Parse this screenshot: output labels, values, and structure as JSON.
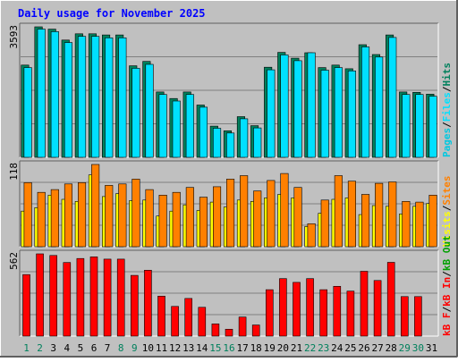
{
  "title": "Daily usage for November 2025",
  "colors": {
    "background": "#C0C0C0",
    "title": "#0000FF",
    "hits": "#00805C",
    "files": "#00E0FF",
    "pages": "#00C8E0",
    "visits": "#FFFF00",
    "sites": "#FF8000",
    "kbin": "#FF0000",
    "kbout": "#00A000",
    "kbf": "#FF0000",
    "day_weekday": "#000000",
    "day_weekend": "#00805C"
  },
  "chart_data": [
    {
      "type": "bar",
      "panel": "top",
      "max_label": "3593",
      "ylim": [
        0,
        3593
      ],
      "categories": [
        "1",
        "2",
        "3",
        "4",
        "5",
        "6",
        "7",
        "8",
        "9",
        "10",
        "11",
        "12",
        "13",
        "14",
        "15",
        "16",
        "17",
        "18",
        "19",
        "20",
        "21",
        "22",
        "23",
        "24",
        "25",
        "26",
        "27",
        "28",
        "29",
        "30",
        "31"
      ],
      "legend": [
        {
          "key": "pages",
          "label": "Pages"
        },
        {
          "key": "sep",
          "label": "/"
        },
        {
          "key": "files",
          "label": "Files"
        },
        {
          "key": "sep",
          "label": "/"
        },
        {
          "key": "hits",
          "label": "Hits"
        }
      ],
      "series": [
        {
          "name": "Hits",
          "key": "hits",
          "values": [
            2540,
            3593,
            3530,
            3230,
            3400,
            3400,
            3370,
            3370,
            2520,
            2640,
            1800,
            1620,
            1800,
            1440,
            860,
            730,
            1120,
            870,
            2480,
            2890,
            2730,
            2880,
            2470,
            2540,
            2440,
            3100,
            2830,
            3370,
            1800,
            1790,
            1740
          ]
        },
        {
          "name": "Files",
          "key": "files",
          "values": [
            2470,
            3530,
            3460,
            3160,
            3330,
            3330,
            3290,
            3290,
            2450,
            2560,
            1730,
            1550,
            1730,
            1380,
            800,
            670,
            1060,
            810,
            2410,
            2820,
            2660,
            2880,
            2400,
            2470,
            2380,
            3040,
            2760,
            3300,
            1730,
            1730,
            1680
          ]
        }
      ]
    },
    {
      "type": "bar",
      "panel": "middle",
      "max_label": "118",
      "ylim": [
        0,
        118
      ],
      "categories": [
        "1",
        "2",
        "3",
        "4",
        "5",
        "6",
        "7",
        "8",
        "9",
        "10",
        "11",
        "12",
        "13",
        "14",
        "15",
        "16",
        "17",
        "18",
        "19",
        "20",
        "21",
        "22",
        "23",
        "24",
        "25",
        "26",
        "27",
        "28",
        "29",
        "30",
        "31"
      ],
      "legend": [
        {
          "key": "visits",
          "label": "Visits"
        },
        {
          "key": "sep",
          "label": "/"
        },
        {
          "key": "sites",
          "label": "Sites"
        }
      ],
      "series": [
        {
          "name": "Visits",
          "key": "visits",
          "values": [
            51,
            56,
            74,
            68,
            65,
            103,
            72,
            76,
            66,
            67,
            44,
            51,
            60,
            52,
            64,
            57,
            67,
            65,
            70,
            75,
            70,
            29,
            48,
            68,
            70,
            46,
            59,
            58,
            47,
            58,
            62
          ]
        },
        {
          "name": "Sites",
          "key": "sites",
          "values": [
            92,
            78,
            82,
            90,
            92,
            118,
            88,
            90,
            97,
            82,
            74,
            78,
            85,
            71,
            86,
            97,
            102,
            80,
            95,
            105,
            85,
            33,
            67,
            102,
            94,
            75,
            91,
            93,
            65,
            64,
            74
          ]
        }
      ]
    },
    {
      "type": "bar",
      "panel": "bottom",
      "max_label": "562",
      "ylim": [
        0,
        562
      ],
      "categories": [
        "1",
        "2",
        "3",
        "4",
        "5",
        "6",
        "7",
        "8",
        "9",
        "10",
        "11",
        "12",
        "13",
        "14",
        "15",
        "16",
        "17",
        "18",
        "19",
        "20",
        "21",
        "22",
        "23",
        "24",
        "25",
        "26",
        "27",
        "28",
        "29",
        "30",
        "31"
      ],
      "legend": [
        {
          "key": "kbf",
          "label": "kB F"
        },
        {
          "key": "sep",
          "label": "/"
        },
        {
          "key": "kbin",
          "label": "kB In"
        },
        {
          "key": "sep",
          "label": "/"
        },
        {
          "key": "kbout",
          "label": "kB Out"
        }
      ],
      "series": [
        {
          "name": "kB F",
          "key": "kbf",
          "values": [
            420,
            562,
            551,
            503,
            530,
            541,
            526,
            526,
            415,
            450,
            273,
            203,
            257,
            197,
            83,
            47,
            130,
            76,
            317,
            393,
            367,
            393,
            317,
            340,
            307,
            443,
            380,
            504,
            270,
            270,
            0
          ]
        }
      ]
    }
  ],
  "x_axis": {
    "labels": [
      "1",
      "2",
      "3",
      "4",
      "5",
      "6",
      "7",
      "8",
      "9",
      "10",
      "11",
      "12",
      "13",
      "14",
      "15",
      "16",
      "17",
      "18",
      "19",
      "20",
      "21",
      "22",
      "23",
      "24",
      "25",
      "26",
      "27",
      "28",
      "29",
      "30",
      "31"
    ],
    "weekend": [
      "1",
      "2",
      "8",
      "9",
      "15",
      "16",
      "22",
      "23",
      "29",
      "30"
    ]
  }
}
